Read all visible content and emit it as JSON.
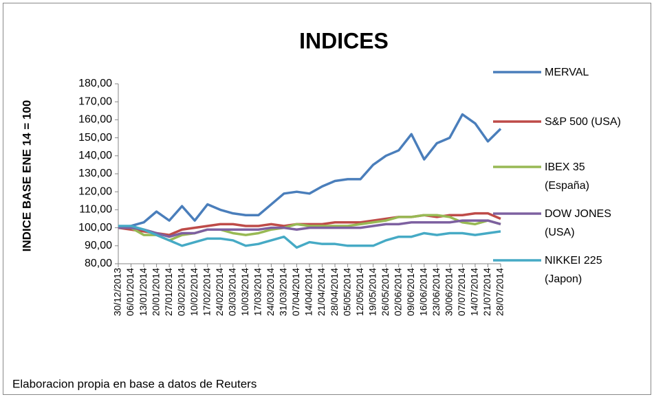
{
  "chart_data": {
    "type": "line",
    "title": "INDICES",
    "y_label": "INDICE BASE  ENE 14 = 100",
    "footnote": "Elaboracion propia en base a datos de Reuters",
    "categories": [
      "30/12/2013",
      "06/01/2014",
      "13/01/2014",
      "20/01/2014",
      "27/01/2014",
      "03/02/2014",
      "10/02/2014",
      "17/02/2014",
      "24/02/2014",
      "03/03/2014",
      "10/03/2014",
      "17/03/2014",
      "24/03/2014",
      "31/03/2014",
      "07/04/2014",
      "14/04/2014",
      "21/04/2014",
      "28/04/2014",
      "05/05/2014",
      "12/05/2014",
      "19/05/2014",
      "26/05/2014",
      "02/06/2014",
      "09/06/2014",
      "16/06/2014",
      "23/06/2014",
      "30/06/2014",
      "07/07/2014",
      "14/07/2014",
      "21/07/2014",
      "28/07/2014"
    ],
    "ylim": [
      80,
      180
    ],
    "yticks": [
      {
        "value": 80,
        "label": "80,00"
      },
      {
        "value": 90,
        "label": "90,00"
      },
      {
        "value": 100,
        "label": "100,00"
      },
      {
        "value": 110,
        "label": "110,00"
      },
      {
        "value": 120,
        "label": "120,00"
      },
      {
        "value": 130,
        "label": "130,00"
      },
      {
        "value": 140,
        "label": "140,00"
      },
      {
        "value": 150,
        "label": "150,00"
      },
      {
        "value": 160,
        "label": "160,00"
      },
      {
        "value": 170,
        "label": "170,00"
      },
      {
        "value": 180,
        "label": "180,00"
      }
    ],
    "grid": false,
    "legend": "right",
    "series": [
      {
        "name": "MERVAL",
        "color": "#4a7ebb",
        "values": [
          100,
          101,
          103,
          109,
          104,
          112,
          104,
          113,
          110,
          108,
          107,
          107,
          113,
          119,
          120,
          119,
          123,
          126,
          127,
          127,
          135,
          140,
          143,
          152,
          138,
          147,
          150,
          163,
          158,
          148,
          155
        ]
      },
      {
        "name": "S&P 500 (USA)",
        "color": "#be4b48",
        "values": [
          100,
          99,
          98,
          97,
          96,
          99,
          100,
          101,
          102,
          102,
          101,
          101,
          102,
          101,
          102,
          102,
          102,
          103,
          103,
          103,
          104,
          105,
          106,
          106,
          107,
          106,
          107,
          107,
          108,
          108,
          105
        ]
      },
      {
        "name": "IBEX 35 (España)",
        "color": "#98b954",
        "values": [
          100,
          100,
          96,
          96,
          93,
          96,
          97,
          99,
          99,
          97,
          96,
          97,
          99,
          100,
          102,
          101,
          101,
          101,
          101,
          102,
          103,
          104,
          106,
          106,
          107,
          107,
          106,
          103,
          102,
          104,
          102
        ]
      },
      {
        "name": "DOW JONES (USA)",
        "color": "#7d60a0",
        "values": [
          100,
          100,
          99,
          97,
          95,
          97,
          97,
          99,
          99,
          99,
          99,
          99,
          100,
          100,
          99,
          100,
          100,
          100,
          100,
          100,
          101,
          102,
          102,
          103,
          103,
          103,
          103,
          104,
          104,
          104,
          102
        ]
      },
      {
        "name": "NIKKEI 225 (Japon)",
        "color": "#46aac5",
        "values": [
          101,
          101,
          99,
          96,
          93,
          90,
          92,
          94,
          94,
          93,
          90,
          91,
          93,
          95,
          89,
          92,
          91,
          91,
          90,
          90,
          90,
          93,
          95,
          95,
          97,
          96,
          97,
          97,
          96,
          97,
          98
        ]
      }
    ]
  }
}
